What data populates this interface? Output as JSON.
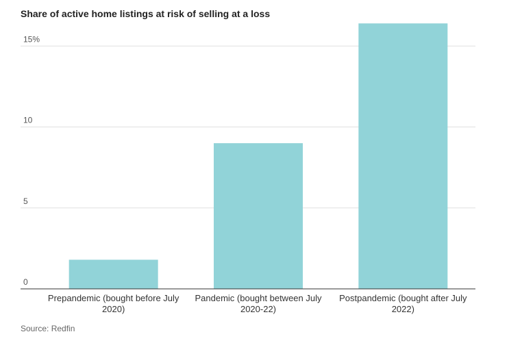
{
  "title": "Share of active home listings at risk of selling at a loss",
  "source": "Source: Redfin",
  "chart_data": {
    "type": "bar",
    "title": "Share of active home listings at risk of selling at a loss",
    "categories": [
      [
        "Prepandemic (bought before July",
        "2020)"
      ],
      [
        "Pandemic (bought between July",
        "2020-22)"
      ],
      [
        "Postpandemic (bought after July",
        "2022)"
      ]
    ],
    "values": [
      1.8,
      9.0,
      16.4
    ],
    "yticks": [
      {
        "value": 0,
        "label": "0"
      },
      {
        "value": 5,
        "label": "5"
      },
      {
        "value": 10,
        "label": "10"
      },
      {
        "value": 15,
        "label": "15%"
      }
    ],
    "ylim": [
      0,
      17
    ],
    "grid": true,
    "bar_color": "#91d3d8",
    "grid_color": "#e0e0e0",
    "axis_color": "#333333"
  }
}
